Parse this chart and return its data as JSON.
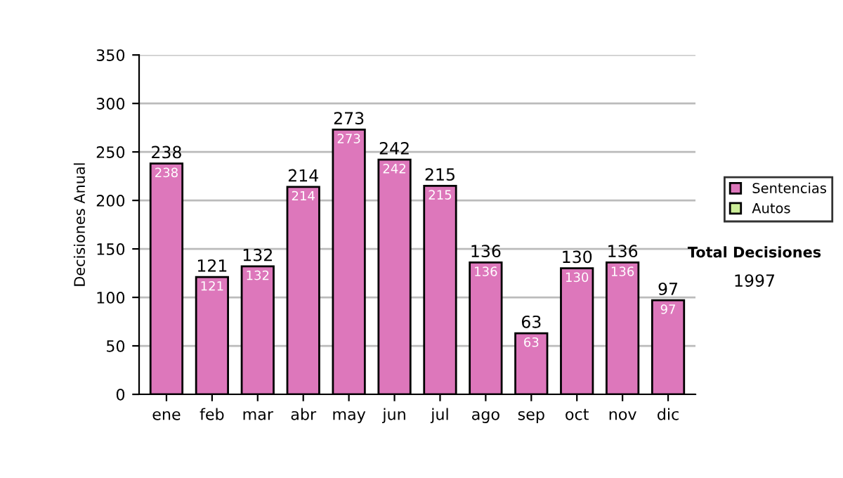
{
  "chart_data": {
    "type": "bar",
    "stacked": true,
    "ylabel": "Decisiones Anual",
    "categories": [
      "ene",
      "feb",
      "mar",
      "abr",
      "may",
      "jun",
      "jul",
      "ago",
      "sep",
      "oct",
      "nov",
      "dic"
    ],
    "series": [
      {
        "name": "Sentencias",
        "color": "#dd77bb",
        "values": [
          238,
          121,
          132,
          214,
          273,
          242,
          215,
          136,
          63,
          130,
          136,
          97
        ],
        "value_labels": [
          "238",
          "121",
          "132",
          "214",
          "273",
          "242",
          "215",
          "136",
          "63",
          "130",
          "136",
          "97"
        ]
      },
      {
        "name": "Autos",
        "color": "#ccee99",
        "values": [
          null,
          null,
          null,
          null,
          null,
          null,
          null,
          null,
          null,
          null,
          null,
          null
        ]
      }
    ],
    "totals": [
      "238",
      "121",
      "132",
      "214",
      "273",
      "242",
      "215",
      "136",
      "63",
      "130",
      "136",
      "97"
    ],
    "ylim": [
      0,
      350
    ],
    "yticks": [
      0,
      50,
      100,
      150,
      200,
      250,
      300,
      350
    ],
    "grid": "y",
    "legend": "right",
    "annotations": [
      "Total Decisiones",
      "1997"
    ]
  }
}
